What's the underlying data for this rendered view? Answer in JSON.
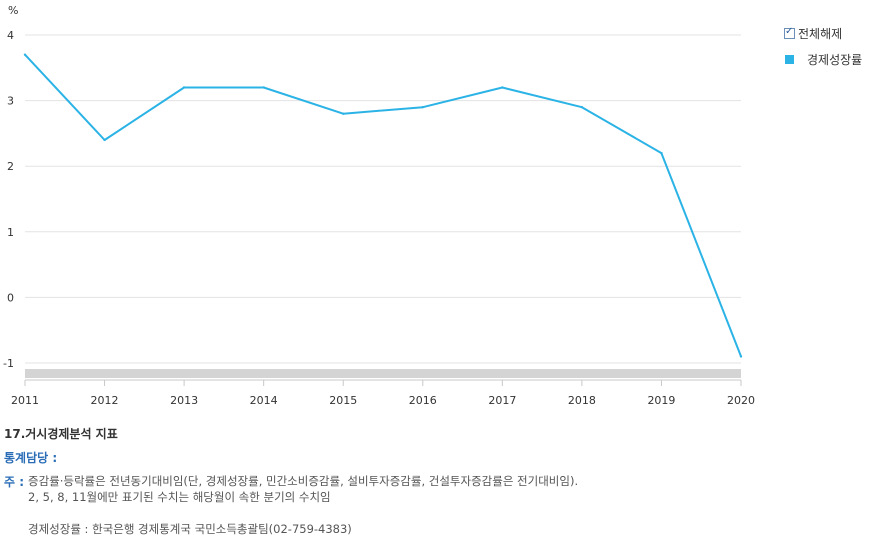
{
  "chart_data": {
    "type": "line",
    "unit_label": "%",
    "x": [
      "2011",
      "2012",
      "2013",
      "2014",
      "2015",
      "2016",
      "2017",
      "2018",
      "2019",
      "2020"
    ],
    "series": [
      {
        "name": "경제성장률",
        "values": [
          3.7,
          2.4,
          3.2,
          3.2,
          2.8,
          2.9,
          3.2,
          2.9,
          2.2,
          -0.9
        ],
        "color": "#2bb3e6"
      }
    ],
    "ylim": [
      -1,
      4
    ],
    "yticks": [
      4,
      3,
      2,
      1,
      0,
      -1
    ],
    "grid": true,
    "legend_position": "top-right"
  },
  "legend": {
    "toggle_label": "전체해제",
    "items": [
      {
        "label": "경제성장률",
        "color": "#2bb3e6"
      }
    ]
  },
  "footer": {
    "section_title": "17.거시경제분석 지표",
    "manager_label": "통계담당 :",
    "note_label": "주 :",
    "note_line1": "증감률·등락률은 전년동기대비임(단, 경제성장률, 민간소비증감률, 설비투자증감률, 건설투자증감률은 전기대비임).",
    "note_line2": "2, 5, 8, 11월에만 표기된 수치는 해당월이 속한 분기의 수치임",
    "contact": "경제성장률 : 한국은행 경제통계국 국민소득총괄팀(02-759-4383)"
  }
}
